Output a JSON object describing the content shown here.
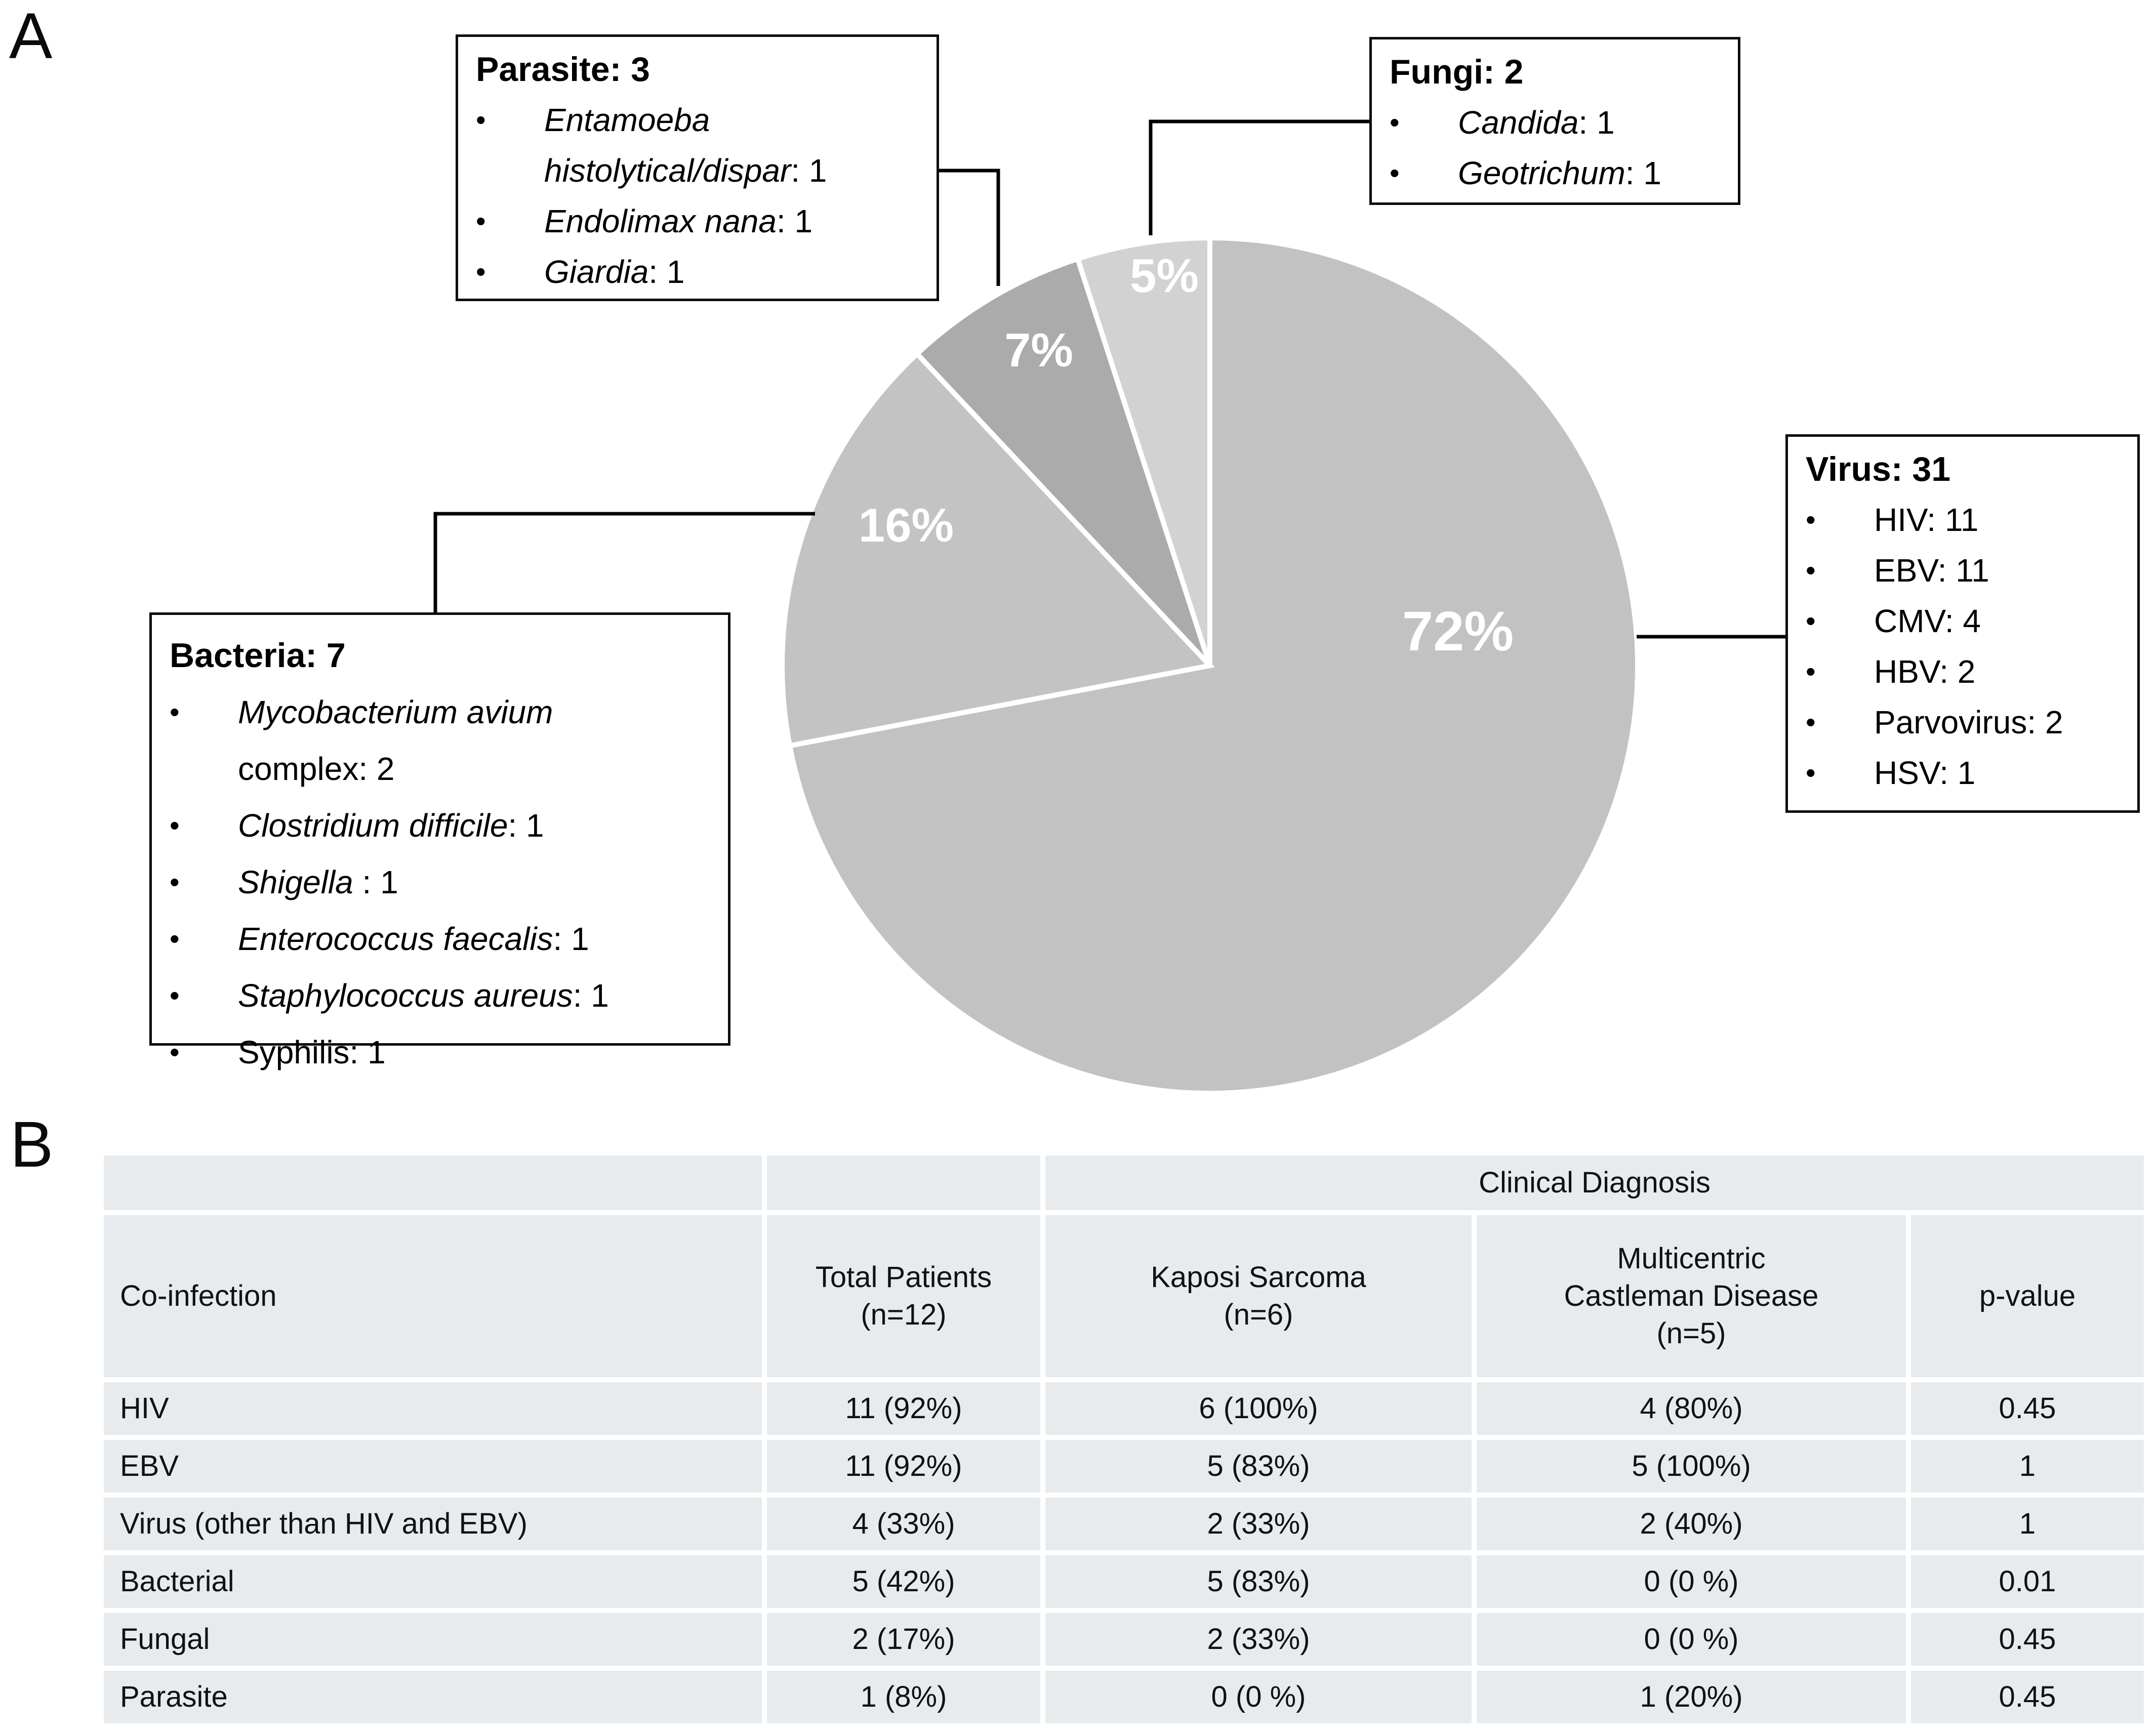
{
  "panel_a_label": "A",
  "panel_b_label": "B",
  "chart_data": {
    "type": "pie",
    "title": "",
    "direction": "clockwise",
    "start_angle": "12 o'clock",
    "label_color": "#ffffff",
    "slices": [
      {
        "label": "Virus",
        "count": 31,
        "pct": 72,
        "pct_label": "72%",
        "color": "#c2c2c2"
      },
      {
        "label": "Bacteria",
        "count": 7,
        "pct": 16,
        "pct_label": "16%",
        "color": "#c3c3c3"
      },
      {
        "label": "Parasite",
        "count": 3,
        "pct": 7,
        "pct_label": "7%",
        "color": "#ababab"
      },
      {
        "label": "Fungi",
        "count": 2,
        "pct": 5,
        "pct_label": "5%",
        "color": "#d2d2d2"
      }
    ]
  },
  "callouts": {
    "parasite": {
      "title": "Parasite: 3",
      "items": [
        {
          "em": "Entamoeba\nhistolytical/dispar",
          "rest": ": 1"
        },
        {
          "em": "Endolimax nana",
          "rest": ": 1"
        },
        {
          "em": "Giardia",
          "rest": ": 1"
        }
      ]
    },
    "fungi": {
      "title": "Fungi: 2",
      "items": [
        {
          "em": "Candida",
          "rest": ": 1"
        },
        {
          "em": "Geotrichum",
          "rest": ": 1"
        }
      ]
    },
    "virus": {
      "title": "Virus: 31",
      "items": [
        {
          "em": "",
          "rest": "HIV: 11"
        },
        {
          "em": "",
          "rest": "EBV: 11"
        },
        {
          "em": "",
          "rest": "CMV: 4"
        },
        {
          "em": "",
          "rest": "HBV: 2"
        },
        {
          "em": "",
          "rest": "Parvovirus: 2"
        },
        {
          "em": "",
          "rest": "HSV: 1"
        }
      ]
    },
    "bacteria": {
      "title": "Bacteria: 7",
      "items": [
        {
          "em": "Mycobacterium avium",
          "rest": "\ncomplex: 2"
        },
        {
          "em": "Clostridium difficile",
          "rest": ": 1"
        },
        {
          "em": "Shigella",
          "rest": " : 1"
        },
        {
          "em": "Enterococcus faecalis",
          "rest": ": 1"
        },
        {
          "em": "Staphylococcus aureus",
          "rest": ": 1"
        },
        {
          "em": "",
          "rest": "Syphilis: 1"
        }
      ]
    }
  },
  "table": {
    "group_header": "Clinical Diagnosis",
    "columns": [
      "Co-infection",
      "Total Patients\n(n=12)",
      "Kaposi Sarcoma\n(n=6)",
      "Multicentric\nCastleman Disease\n(n=5)",
      "p-value"
    ],
    "rows": [
      [
        "HIV",
        "11 (92%)",
        "6 (100%)",
        "4 (80%)",
        "0.45"
      ],
      [
        "EBV",
        "11 (92%)",
        "5 (83%)",
        "5 (100%)",
        "1"
      ],
      [
        "Virus (other than HIV and EBV)",
        "4 (33%)",
        "2 (33%)",
        "2 (40%)",
        "1"
      ],
      [
        "Bacterial",
        "5 (42%)",
        "5 (83%)",
        "0 (0 %)",
        "0.01"
      ],
      [
        "Fungal",
        "2 (17%)",
        "2 (33%)",
        "0 (0 %)",
        "0.45"
      ],
      [
        "Parasite",
        "1 (8%)",
        "0 (0 %)",
        "1 (20%)",
        "0.45"
      ]
    ]
  }
}
